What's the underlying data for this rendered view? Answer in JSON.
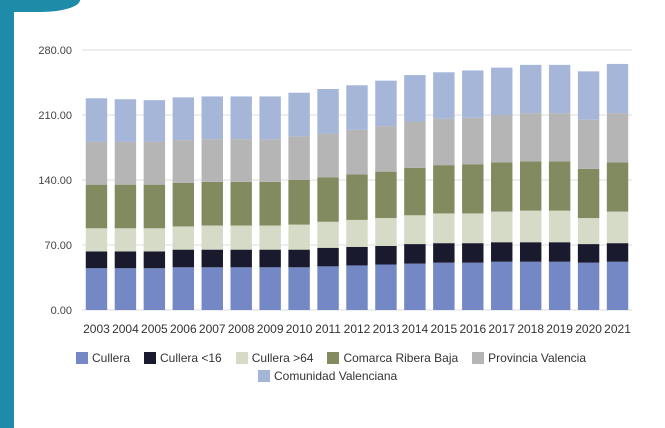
{
  "chart_data": {
    "type": "bar",
    "stacked": true,
    "categories": [
      "2003",
      "2004",
      "2005",
      "2006",
      "2007",
      "2008",
      "2009",
      "2010",
      "2011",
      "2012",
      "2013",
      "2014",
      "2015",
      "2016",
      "2017",
      "2018",
      "2019",
      "2020",
      "2021"
    ],
    "y_ticks": [
      "0.00",
      "70.00",
      "140.00",
      "210.00",
      "280.00"
    ],
    "ylim": [
      0,
      280
    ],
    "grid": true,
    "legend_position": "bottom",
    "series": [
      {
        "name": "Cullera",
        "color": "#7388c4",
        "values": [
          45,
          45,
          45,
          46,
          46,
          46,
          46,
          46,
          47,
          48,
          49,
          50,
          51,
          51,
          52,
          52,
          52,
          51,
          52
        ]
      },
      {
        "name": "Cullera <16",
        "color": "#1a1a2e",
        "values": [
          18,
          18,
          18,
          19,
          19,
          19,
          19,
          19,
          20,
          20,
          20,
          21,
          21,
          21,
          21,
          21,
          21,
          20,
          20
        ]
      },
      {
        "name": "Cullera >64",
        "color": "#d5dbc7",
        "values": [
          25,
          25,
          25,
          25,
          26,
          26,
          26,
          27,
          28,
          29,
          30,
          31,
          32,
          32,
          33,
          34,
          34,
          28,
          34
        ]
      },
      {
        "name": "Comarca Ribera Baja",
        "color": "#828b5f",
        "values": [
          47,
          47,
          47,
          47,
          47,
          47,
          47,
          48,
          48,
          49,
          50,
          51,
          52,
          53,
          53,
          53,
          53,
          53,
          53
        ]
      },
      {
        "name": "Provincia Valencia",
        "color": "#b5b5b5",
        "values": [
          46,
          46,
          46,
          46,
          46,
          46,
          46,
          47,
          47,
          48,
          49,
          50,
          50,
          50,
          51,
          52,
          52,
          53,
          53
        ]
      },
      {
        "name": "Comunidad Valenciana",
        "color": "#a5b6d8",
        "values": [
          47,
          46,
          45,
          46,
          46,
          46,
          46,
          47,
          48,
          48,
          49,
          50,
          50,
          51,
          51,
          52,
          52,
          52,
          53
        ]
      }
    ]
  }
}
